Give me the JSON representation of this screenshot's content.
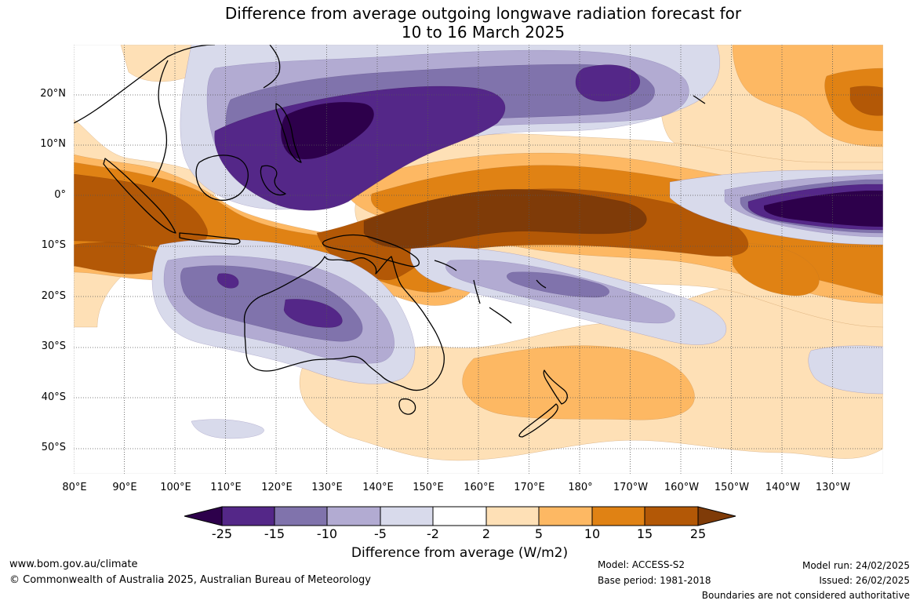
{
  "title": {
    "line1": "Difference from average outgoing longwave radiation forecast for",
    "line2": "10 to 16 March 2025"
  },
  "map": {
    "lat_labels": [
      "20°N",
      "10°N",
      "0°",
      "10°S",
      "20°S",
      "30°S",
      "40°S",
      "50°S"
    ],
    "lon_labels": [
      "80°E",
      "90°E",
      "100°E",
      "110°E",
      "120°E",
      "130°E",
      "140°E",
      "150°E",
      "160°E",
      "170°E",
      "180°",
      "170°W",
      "160°W",
      "150°W",
      "140°W",
      "130°W"
    ],
    "ocean_color": "#ffffff",
    "coastline_color": "#000000",
    "grid": "dotted"
  },
  "legend": {
    "title": "Difference from average (W/m2)",
    "tick_labels": [
      "-25",
      "-15",
      "-10",
      "-5",
      "-2",
      "2",
      "5",
      "10",
      "15",
      "25"
    ],
    "colors": [
      "#2d004b",
      "#542788",
      "#8073ac",
      "#b2abd2",
      "#d8daeb",
      "#ffffff",
      "#fee0b6",
      "#fdb863",
      "#e08214",
      "#b35806",
      "#7f3b08"
    ]
  },
  "footer": {
    "website": "www.bom.gov.au/climate",
    "copyright": "© Commonwealth of Australia 2025, Australian Bureau of Meteorology",
    "model": "Model: ACCESS-S2",
    "base_period": "Base period: 1981-2018",
    "model_run": "Model run: 24/02/2025",
    "issued": "Issued: 26/02/2025",
    "disclaimer": "Boundaries are not considered authoritative"
  }
}
